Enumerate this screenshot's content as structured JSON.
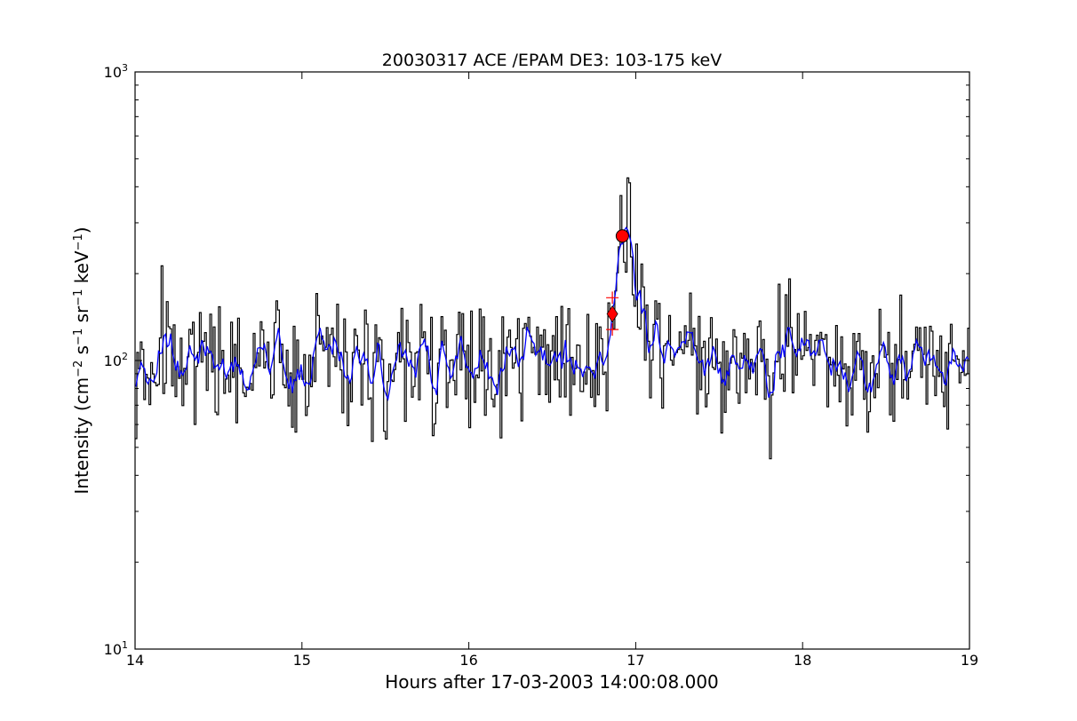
{
  "chart_data": {
    "type": "line",
    "title": "20030317 ACE /EPAM DE3: 103-175 keV",
    "xlabel": "Hours after 17-03-2003 14:00:08.000",
    "ylabel_parts": [
      "Intensity (cm",
      "−2",
      " s",
      "−1",
      " sr",
      "−1",
      " keV",
      "−1",
      ")"
    ],
    "xlim": [
      14,
      19
    ],
    "ylim": [
      10,
      1000
    ],
    "yscale": "log",
    "grid": false,
    "x_ticks": [
      14,
      15,
      16,
      17,
      18,
      19
    ],
    "x_tick_labels": [
      "14",
      "15",
      "16",
      "17",
      "18",
      "19"
    ],
    "y_tick_labels": [
      {
        "value": 10,
        "base": "10",
        "exp": "1"
      },
      {
        "value": 100,
        "base": "10",
        "exp": "2"
      },
      {
        "value": 1000,
        "base": "10",
        "exp": "3"
      }
    ],
    "series": [
      {
        "style": "steps",
        "color": "#000000",
        "base_level": 100,
        "points": 480,
        "noise_log_sd": 0.11,
        "bump": {
          "center": 16.92,
          "peak": 230,
          "rise_width": 0.06,
          "decay_width": 0.12
        },
        "x_range": [
          14,
          19
        ]
      },
      {
        "style": "line",
        "color": "#0000ff",
        "smoothing_window": 5,
        "derived_from_series": 0
      }
    ],
    "markers": [
      {
        "type": "circle",
        "x": 16.92,
        "y": 270,
        "color": "#ff0000"
      },
      {
        "type": "diamond",
        "x": 16.86,
        "y": 145,
        "color": "#ff0000"
      },
      {
        "type": "plus",
        "x": 16.86,
        "y": 165,
        "color": "#ff0000"
      },
      {
        "type": "plus",
        "x": 16.86,
        "y": 128,
        "color": "#ff0000"
      }
    ]
  }
}
